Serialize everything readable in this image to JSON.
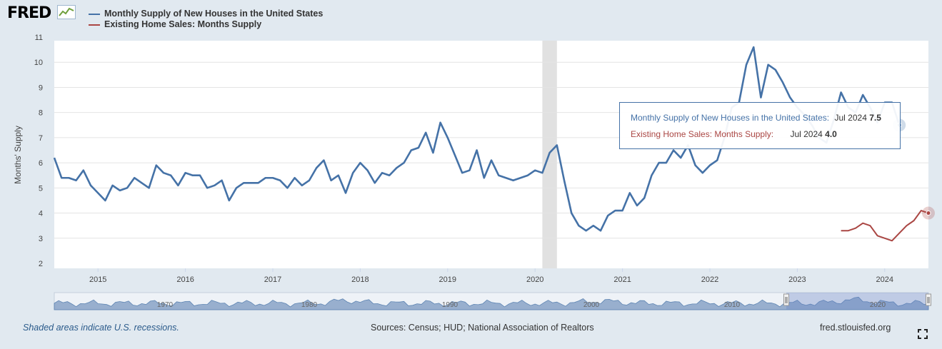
{
  "header": {
    "logo_text": "FRED",
    "legend": [
      {
        "label": "Monthly Supply of New Houses in the United States",
        "color": "#4572a7"
      },
      {
        "label": "Existing Home Sales: Months Supply",
        "color": "#aa4643"
      }
    ]
  },
  "footer": {
    "recession_note": "Shaded areas indicate U.S. recessions.",
    "sources": "Sources: Census; HUD; National Association of Realtors",
    "site": "fred.stlouisfed.org"
  },
  "tooltip": {
    "series1_label": "Monthly Supply of New Houses in the United States:",
    "series1_date": "Jul 2024",
    "series1_value": "7.5",
    "series2_label": "Existing Home Sales: Months Supply:",
    "series2_date": "Jul 2024",
    "series2_value": "4.0"
  },
  "chart_data": {
    "type": "line",
    "ylabel": "Months' Supply",
    "ylim": [
      2,
      11
    ],
    "yticks": [
      2,
      3,
      4,
      5,
      6,
      7,
      8,
      9,
      10,
      11
    ],
    "xlim": [
      "2014-07",
      "2024-07"
    ],
    "xticks": [
      "2015",
      "2016",
      "2017",
      "2018",
      "2019",
      "2020",
      "2021",
      "2022",
      "2023",
      "2024"
    ],
    "recession": [
      "2020-02",
      "2020-04"
    ],
    "navigator_labels": [
      "1970",
      "1980",
      "1990",
      "2000",
      "2010",
      "2020"
    ],
    "series": [
      {
        "name": "Monthly Supply of New Houses in the United States",
        "color": "#4572a7",
        "start": "2014-07",
        "values": [
          6.2,
          5.4,
          5.4,
          5.3,
          5.7,
          5.1,
          4.8,
          4.5,
          5.1,
          4.9,
          5.0,
          5.4,
          5.2,
          5.0,
          5.9,
          5.6,
          5.5,
          5.1,
          5.6,
          5.5,
          5.5,
          5.0,
          5.1,
          5.3,
          4.5,
          5.0,
          5.2,
          5.2,
          5.2,
          5.4,
          5.4,
          5.3,
          5.0,
          5.4,
          5.1,
          5.3,
          5.8,
          6.1,
          5.3,
          5.5,
          4.8,
          5.6,
          6.0,
          5.7,
          5.2,
          5.6,
          5.5,
          5.8,
          6.0,
          6.5,
          6.6,
          7.2,
          6.4,
          7.6,
          7.0,
          6.3,
          5.6,
          5.7,
          6.5,
          5.4,
          6.1,
          5.5,
          5.4,
          5.3,
          5.4,
          5.5,
          5.7,
          5.6,
          6.4,
          6.7,
          5.3,
          4.0,
          3.5,
          3.3,
          3.5,
          3.3,
          3.9,
          4.1,
          4.1,
          4.8,
          4.3,
          4.6,
          5.5,
          6.0,
          6.0,
          6.5,
          6.2,
          6.7,
          5.9,
          5.6,
          5.9,
          6.1,
          7.0,
          8.2,
          8.4,
          9.9,
          10.6,
          8.6,
          9.9,
          9.7,
          9.2,
          8.6,
          8.2,
          7.9,
          7.5,
          7.0,
          6.8,
          7.7,
          8.8,
          8.2,
          8.0,
          8.7,
          8.2,
          7.6,
          8.4,
          8.4,
          7.5
        ]
      },
      {
        "name": "Existing Home Sales: Months Supply",
        "color": "#aa4643",
        "start": "2023-07",
        "values": [
          3.3,
          3.3,
          3.4,
          3.6,
          3.5,
          3.1,
          3.0,
          2.9,
          3.2,
          3.5,
          3.7,
          4.1,
          4.0
        ]
      }
    ]
  }
}
